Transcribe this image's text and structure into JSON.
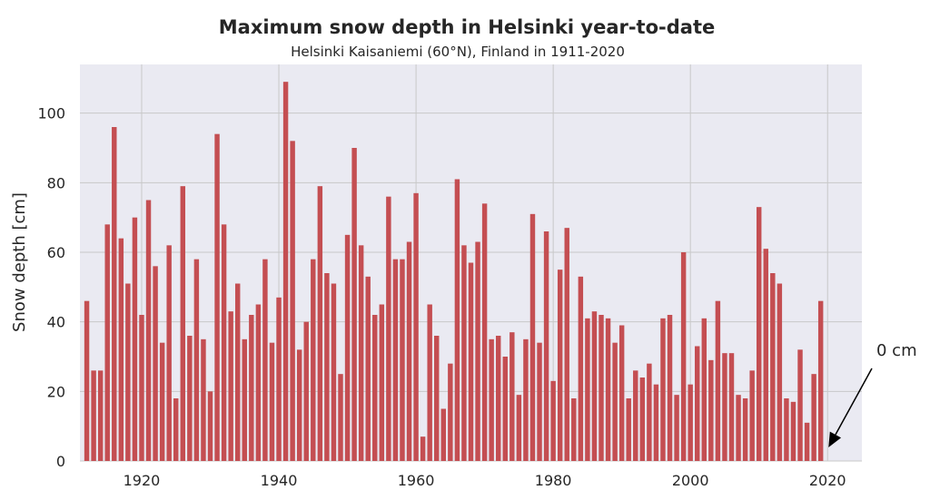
{
  "chart_data": {
    "type": "bar",
    "title": "Maximum snow depth in Helsinki year-to-date",
    "subtitle": "Helsinki Kaisaniemi (60°N), Finland in 1911-2020",
    "xlabel": "",
    "ylabel": "Snow depth [cm]",
    "xlim": [
      1911,
      2025
    ],
    "ylim": [
      0,
      114
    ],
    "grid": true,
    "x_ticks": [
      1920,
      1940,
      1960,
      1980,
      2000,
      2020
    ],
    "y_ticks": [
      0,
      20,
      40,
      60,
      80,
      100
    ],
    "years": [
      1912,
      1913,
      1914,
      1915,
      1916,
      1917,
      1918,
      1919,
      1920,
      1921,
      1922,
      1923,
      1924,
      1925,
      1926,
      1927,
      1928,
      1929,
      1930,
      1931,
      1932,
      1933,
      1934,
      1935,
      1936,
      1937,
      1938,
      1939,
      1940,
      1941,
      1942,
      1943,
      1944,
      1945,
      1946,
      1947,
      1948,
      1949,
      1950,
      1951,
      1952,
      1953,
      1954,
      1955,
      1956,
      1957,
      1958,
      1959,
      1960,
      1961,
      1962,
      1963,
      1964,
      1965,
      1966,
      1967,
      1968,
      1969,
      1970,
      1971,
      1972,
      1973,
      1974,
      1975,
      1976,
      1977,
      1978,
      1979,
      1980,
      1981,
      1982,
      1983,
      1984,
      1985,
      1986,
      1987,
      1988,
      1989,
      1990,
      1991,
      1992,
      1993,
      1994,
      1995,
      1996,
      1997,
      1998,
      1999,
      2000,
      2001,
      2002,
      2003,
      2004,
      2005,
      2006,
      2007,
      2008,
      2009,
      2010,
      2011,
      2012,
      2013,
      2014,
      2015,
      2016,
      2017,
      2018,
      2019,
      2020
    ],
    "values": [
      46,
      26,
      26,
      68,
      96,
      64,
      51,
      70,
      42,
      75,
      56,
      34,
      62,
      18,
      79,
      36,
      58,
      35,
      20,
      94,
      68,
      43,
      51,
      35,
      42,
      45,
      58,
      34,
      47,
      109,
      92,
      32,
      40,
      58,
      79,
      54,
      51,
      25,
      65,
      90,
      62,
      53,
      42,
      45,
      76,
      58,
      58,
      63,
      77,
      7,
      45,
      36,
      15,
      28,
      81,
      62,
      57,
      63,
      74,
      35,
      36,
      30,
      37,
      19,
      35,
      71,
      34,
      66,
      23,
      55,
      67,
      18,
      53,
      41,
      43,
      42,
      41,
      34,
      39,
      18,
      26,
      24,
      28,
      22,
      41,
      42,
      19,
      60,
      22,
      33,
      41,
      29,
      46,
      31,
      31,
      19,
      18,
      26,
      73,
      61,
      54,
      51,
      18,
      17,
      32,
      11,
      25,
      46,
      0
    ],
    "annotation": {
      "text": "0 cm",
      "target_year": 2020,
      "target_value": 0
    }
  }
}
